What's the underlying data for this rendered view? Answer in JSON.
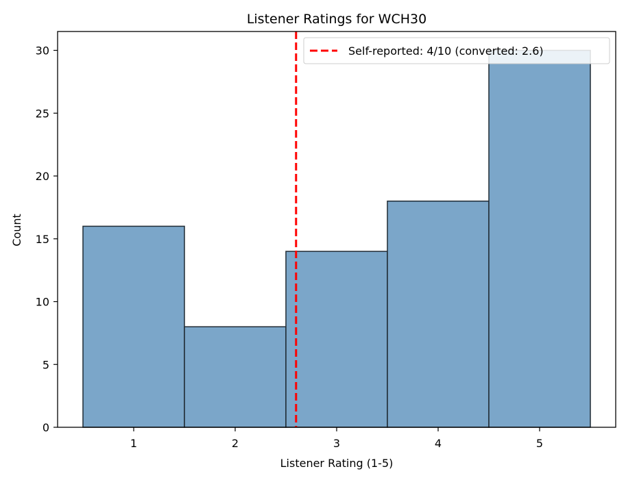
{
  "chart_data": {
    "type": "bar",
    "title": "Listener Ratings for WCH30",
    "xlabel": "Listener Rating (1-5)",
    "ylabel": "Count",
    "categories": [
      "1",
      "2",
      "3",
      "4",
      "5"
    ],
    "bins": [
      [
        0.5,
        1.5
      ],
      [
        1.5,
        2.5
      ],
      [
        2.5,
        3.5
      ],
      [
        3.5,
        4.5
      ],
      [
        4.5,
        5.5
      ]
    ],
    "values": [
      16,
      8,
      14,
      18,
      30
    ],
    "xlim": [
      0.25,
      5.75
    ],
    "ylim": [
      0,
      31.5
    ],
    "xticks": [
      1,
      2,
      3,
      4,
      5
    ],
    "yticks": [
      0,
      5,
      10,
      15,
      20,
      25,
      30
    ],
    "bar_color": "#7ba6c9",
    "bar_edge_color": "#1f2a33",
    "reference_line": {
      "x": 2.6,
      "label": "Self-reported: 4/10 (converted: 2.6)",
      "color": "#ff0000",
      "style": "dashed"
    },
    "legend_position": "top-right",
    "grid": false
  }
}
